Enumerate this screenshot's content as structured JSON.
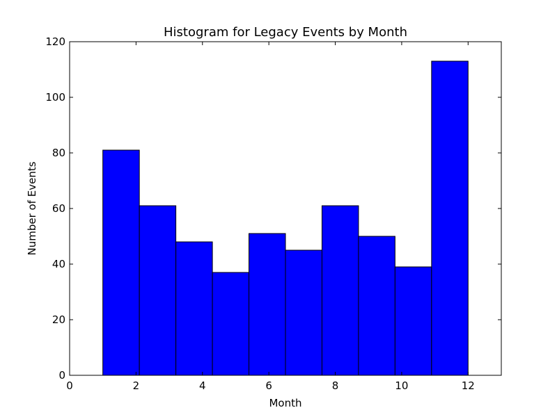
{
  "chart_data": {
    "type": "bar",
    "title": "Histogram for Legacy Events by Month",
    "xlabel": "Month",
    "ylabel": "Number of Events",
    "xlim": [
      0,
      13
    ],
    "ylim": [
      0,
      120
    ],
    "xticks": [
      0,
      2,
      4,
      6,
      8,
      10,
      12
    ],
    "yticks": [
      0,
      20,
      40,
      60,
      80,
      100,
      120
    ],
    "grid": false,
    "bar_color": "#0000ff",
    "edge_color": "#000000",
    "bins": [
      {
        "start": 1.0,
        "end": 2.1,
        "value": 81
      },
      {
        "start": 2.1,
        "end": 3.2,
        "value": 61
      },
      {
        "start": 3.2,
        "end": 4.3,
        "value": 48
      },
      {
        "start": 4.3,
        "end": 5.4,
        "value": 37
      },
      {
        "start": 5.4,
        "end": 6.5,
        "value": 51
      },
      {
        "start": 6.5,
        "end": 7.6,
        "value": 45
      },
      {
        "start": 7.6,
        "end": 8.7,
        "value": 61
      },
      {
        "start": 8.7,
        "end": 9.8,
        "value": 50
      },
      {
        "start": 9.8,
        "end": 10.9,
        "value": 39
      },
      {
        "start": 10.9,
        "end": 12.0,
        "value": 113
      }
    ]
  }
}
